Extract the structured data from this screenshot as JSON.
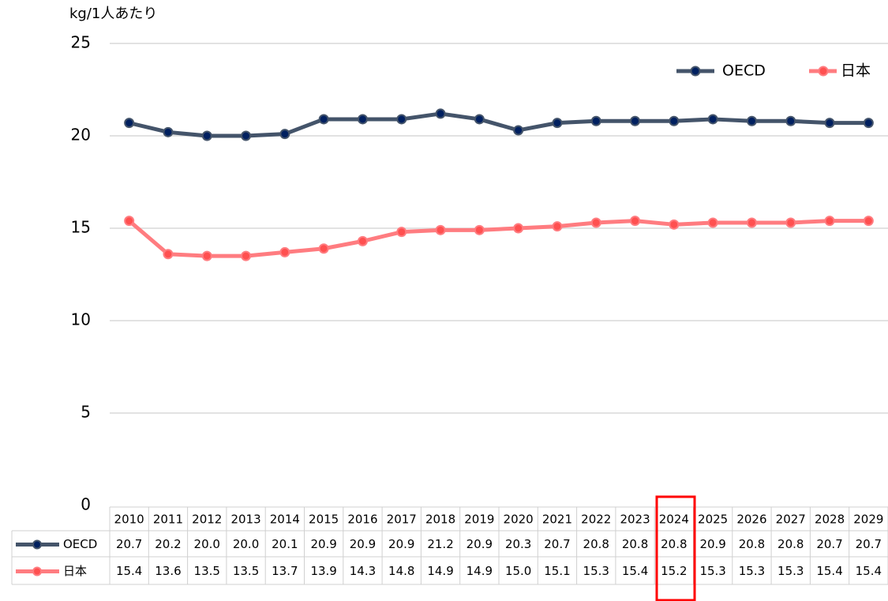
{
  "chart_data": {
    "type": "line",
    "y_label": "kg/1人あたり",
    "categories": [
      "2010",
      "2011",
      "2012",
      "2013",
      "2014",
      "2015",
      "2016",
      "2017",
      "2018",
      "2019",
      "2020",
      "2021",
      "2022",
      "2023",
      "2024",
      "2025",
      "2026",
      "2027",
      "2028",
      "2029"
    ],
    "series": [
      {
        "name": "OECD",
        "color": "#44546a",
        "marker_color": "#002060",
        "values": [
          20.7,
          20.2,
          20.0,
          20.0,
          20.1,
          20.9,
          20.9,
          20.9,
          21.2,
          20.9,
          20.3,
          20.7,
          20.8,
          20.8,
          20.8,
          20.9,
          20.8,
          20.8,
          20.7,
          20.7
        ],
        "value_labels": [
          "20.7",
          "20.2",
          "20.0",
          "20.0",
          "20.1",
          "20.9",
          "20.9",
          "20.9",
          "21.2",
          "20.9",
          "20.3",
          "20.7",
          "20.8",
          "20.8",
          "20.8",
          "20.9",
          "20.8",
          "20.8",
          "20.7",
          "20.7"
        ]
      },
      {
        "name": "日本",
        "color": "#ff7c80",
        "marker_color": "#ff5050",
        "values": [
          15.4,
          13.6,
          13.5,
          13.5,
          13.7,
          13.9,
          14.3,
          14.8,
          14.9,
          14.9,
          15.0,
          15.1,
          15.3,
          15.4,
          15.2,
          15.3,
          15.3,
          15.3,
          15.4,
          15.4
        ],
        "value_labels": [
          "15.4",
          "13.6",
          "13.5",
          "13.5",
          "13.7",
          "13.9",
          "14.3",
          "14.8",
          "14.9",
          "14.9",
          "15.0",
          "15.1",
          "15.3",
          "15.4",
          "15.2",
          "15.3",
          "15.3",
          "15.3",
          "15.4",
          "15.4"
        ]
      }
    ],
    "ylim": [
      0,
      25
    ],
    "yticks": [
      0,
      5,
      10,
      15,
      20,
      25
    ],
    "grid": true,
    "legend": "top-right",
    "data_table": true
  }
}
